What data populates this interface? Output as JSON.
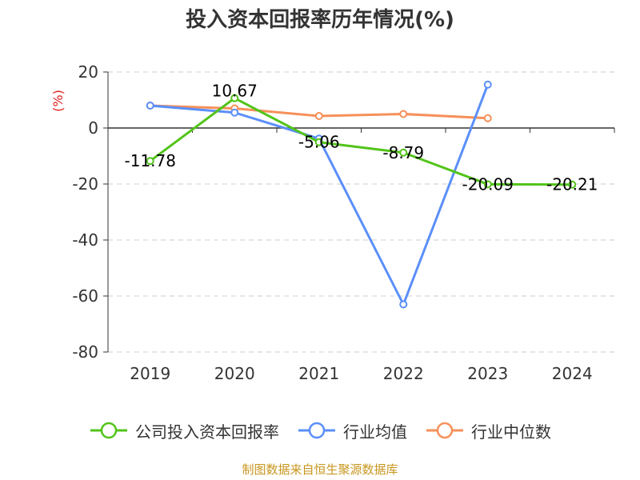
{
  "chart_data": {
    "type": "line",
    "title": "投入资本回报率历年情况(%)",
    "unit_label": "(%)",
    "categories": [
      "2019",
      "2020",
      "2021",
      "2022",
      "2023",
      "2024"
    ],
    "ylim": [
      -80,
      20
    ],
    "yticks": [
      20,
      0,
      -20,
      -40,
      -60,
      -80
    ],
    "grid": true,
    "legend_position": "bottom",
    "series": [
      {
        "name": "公司投入资本回报率",
        "color": "#52c41a",
        "values": [
          -11.78,
          10.67,
          -5.06,
          -8.79,
          -20.09,
          -20.21
        ],
        "labels": [
          "-11.78",
          "10.67",
          "-5.06",
          "-8.79",
          "-20.09",
          "-20.21"
        ]
      },
      {
        "name": "行业均值",
        "color": "#5b8ff9",
        "values": [
          8.0,
          5.5,
          -3.8,
          -63.0,
          15.5,
          null
        ]
      },
      {
        "name": "行业中位数",
        "color": "#f6905a",
        "values": [
          8.0,
          7.0,
          4.3,
          5.0,
          3.5,
          null
        ]
      }
    ]
  },
  "source_text": "制图数据来自恒生聚源数据库",
  "unit_color": "#e02020"
}
